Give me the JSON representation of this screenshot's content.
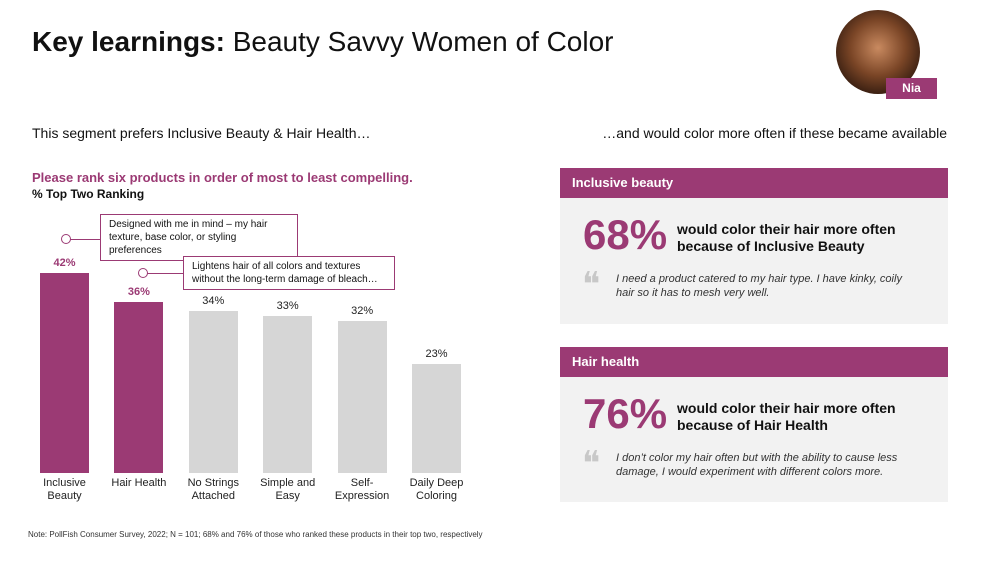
{
  "title_bold": "Key learnings:",
  "title_rest": "Beauty Savvy Women of Color",
  "persona": "Nia",
  "left_heading": "This segment prefers Inclusive Beauty & Hair Health…",
  "right_heading": "…and would color more often if these became available",
  "chart_data": {
    "type": "bar",
    "title": "Please rank six products in order of most to least compelling.",
    "subtitle": "% Top Two Ranking",
    "categories": [
      "Inclusive Beauty",
      "Hair Health",
      "No Strings Attached",
      "Simple and Easy",
      "Self-Expression",
      "Daily Deep Coloring"
    ],
    "values": [
      42,
      36,
      34,
      33,
      32,
      23
    ],
    "value_labels": [
      "42%",
      "36%",
      "34%",
      "33%",
      "32%",
      "23%"
    ],
    "colors": [
      "#9b3a74",
      "#9b3a74",
      "#d6d6d6",
      "#d6d6d6",
      "#d6d6d6",
      "#d6d6d6"
    ],
    "annotations": [
      "Designed with me in mind – my hair texture, base color, or styling preferences",
      "Lightens hair of all colors and textures without the long-term damage of bleach…"
    ]
  },
  "panels": [
    {
      "header": "Inclusive beauty",
      "stat": "68%",
      "stat_text": "would color their hair more often because of Inclusive Beauty",
      "quote": "I need a product catered to my hair type. I have kinky, coily hair so it has to mesh very well."
    },
    {
      "header": "Hair health",
      "stat": "76%",
      "stat_text": "would color their hair more often because of Hair Health",
      "quote": "I don’t color my hair often but with the ability to cause less damage, I would experiment with different colors more."
    }
  ],
  "note": "Note: PollFish Consumer Survey, 2022; N = 101; 68% and 76% of those who ranked these products in their top two, respectively"
}
